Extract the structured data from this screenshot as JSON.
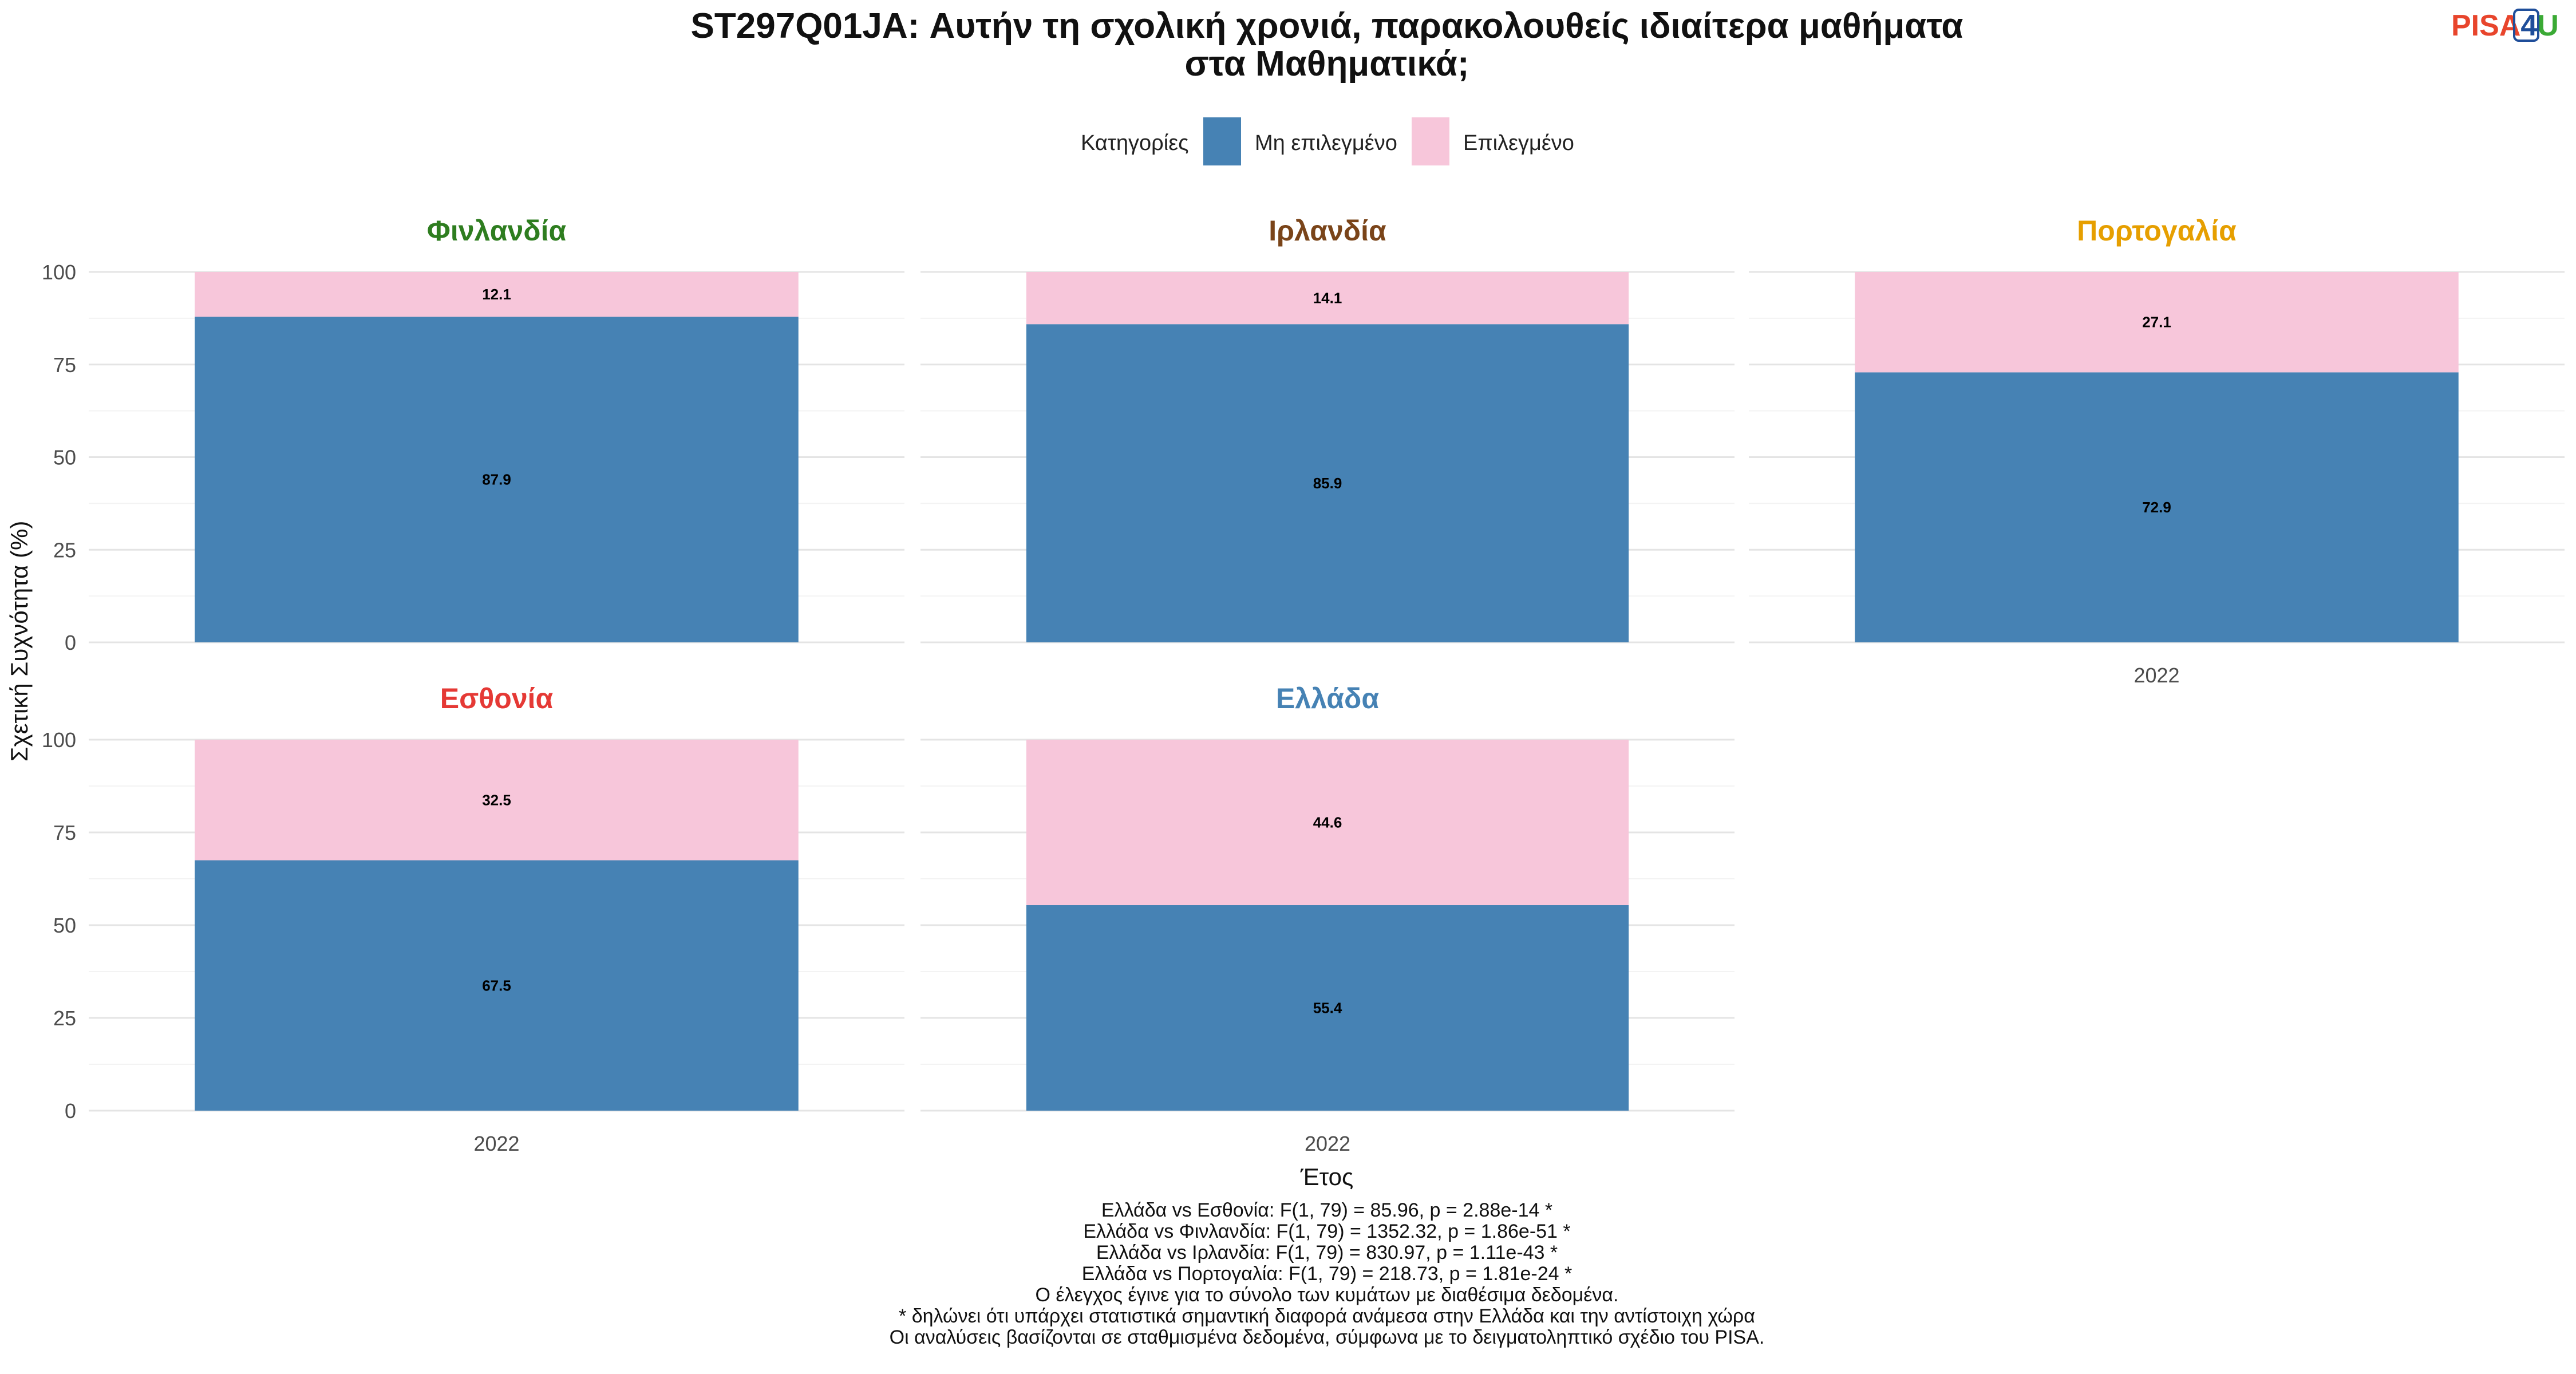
{
  "chart_data": {
    "type": "bar",
    "stacked": true,
    "title_lines": [
      "ST297Q01JA: Αυτήν τη σχολική χρονιά, παρακολουθείς ιδιαίτερα μαθήματα",
      "στα Μαθηματικά;"
    ],
    "legend": {
      "title": "Κατηγορίες",
      "placement": "top",
      "entries": [
        {
          "label": "Μη επιλεγμένο",
          "color": "#4682B4"
        },
        {
          "label": "Επιλεγμένο",
          "color": "#F7C6DA"
        }
      ]
    },
    "xlabel": "Έτος",
    "ylabel": "Σχετική Συχνότητα (%)",
    "ylim": [
      0,
      100
    ],
    "yticks": [
      "0",
      "25",
      "50",
      "75",
      "100"
    ],
    "grid": true,
    "categories": [
      "2022"
    ],
    "panels": [
      {
        "name": "Φινλανδία",
        "color": "#2E7D1F",
        "series": [
          {
            "name": "Μη επιλεγμένο",
            "values": [
              87.9
            ],
            "labels": [
              "87.9"
            ]
          },
          {
            "name": "Επιλεγμένο",
            "values": [
              12.1
            ],
            "labels": [
              "12.1"
            ]
          }
        ]
      },
      {
        "name": "Ιρλανδία",
        "color": "#7A4419",
        "series": [
          {
            "name": "Μη επιλεγμένο",
            "values": [
              85.9
            ],
            "labels": [
              "85.9"
            ]
          },
          {
            "name": "Επιλεγμένο",
            "values": [
              14.1
            ],
            "labels": [
              "14.1"
            ]
          }
        ]
      },
      {
        "name": "Πορτογαλία",
        "color": "#E69F00",
        "series": [
          {
            "name": "Μη επιλεγμένο",
            "values": [
              72.9
            ],
            "labels": [
              "72.9"
            ]
          },
          {
            "name": "Επιλεγμένο",
            "values": [
              27.1
            ],
            "labels": [
              "27.1"
            ]
          }
        ]
      },
      {
        "name": "Εσθονία",
        "color": "#E53935",
        "series": [
          {
            "name": "Μη επιλεγμένο",
            "values": [
              67.5
            ],
            "labels": [
              "67.5"
            ]
          },
          {
            "name": "Επιλεγμένο",
            "values": [
              32.5
            ],
            "labels": [
              "32.5"
            ]
          }
        ]
      },
      {
        "name": "Ελλάδα",
        "color": "#4682B4",
        "series": [
          {
            "name": "Μη επιλεγμένο",
            "values": [
              55.4
            ],
            "labels": [
              "55.4"
            ]
          },
          {
            "name": "Επιλεγμένο",
            "values": [
              44.6
            ],
            "labels": [
              "44.6"
            ]
          }
        ]
      }
    ],
    "caption_lines": [
      "Ελλάδα vs Εσθονία: F(1, 79) = 85.96, p = 2.88e-14 *",
      "Ελλάδα vs Φινλανδία: F(1, 79) = 1352.32, p = 1.86e-51 *",
      "Ελλάδα vs Ιρλανδία: F(1, 79) = 830.97, p = 1.11e-43 *",
      "Ελλάδα vs Πορτογαλία: F(1, 79) = 218.73, p = 1.81e-24 *",
      "Ο έλεγχος έγινε για το σύνολο των κυμάτων με διαθέσιμα δεδομένα.",
      "* δηλώνει ότι υπάρχει στατιστικά σημαντική διαφορά ανάμεσα στην Ελλάδα και την αντίστοιχη χώρα",
      "Οι αναλύσεις βασίζονται σε σταθμισμένα δεδομένα, σύμφωνα με το δειγματοληπτικό σχέδιο του PISA."
    ]
  },
  "logo": {
    "parts": [
      "PISA",
      "4",
      "U"
    ],
    "colors": [
      "#E8452C",
      "#1F4E9A",
      "#3BAA35"
    ]
  }
}
